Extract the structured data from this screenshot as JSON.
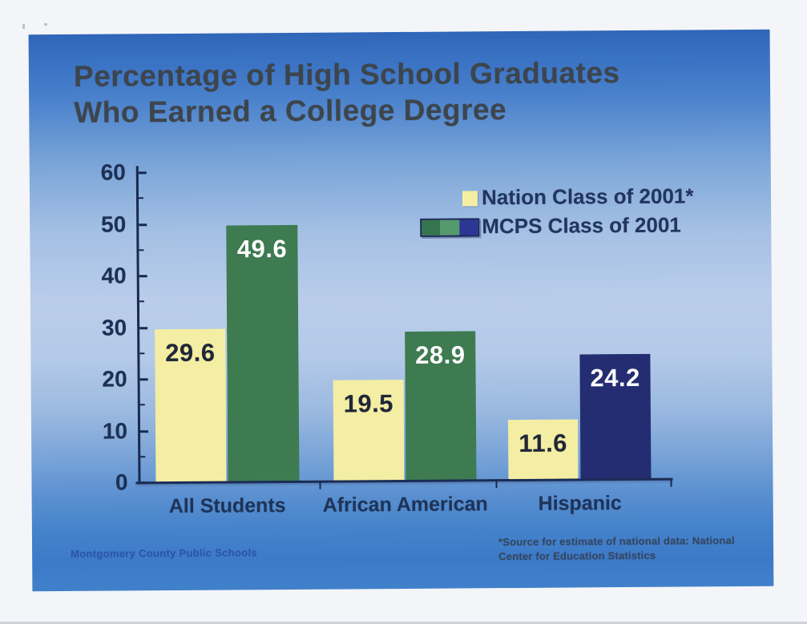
{
  "header": {
    "title_line1": "Percentage of High School Graduates",
    "title_line2": "Who Earned a College Degree"
  },
  "chart_data": {
    "type": "bar",
    "title": "Percentage of High School Graduates Who Earned a College Degree",
    "categories": [
      "All Students",
      "African American",
      "Hispanic"
    ],
    "series": [
      {
        "name": "Nation Class of 2001*",
        "values": [
          29.6,
          19.5,
          11.6
        ],
        "color": "#f4eea4",
        "label_color": "#1f2738"
      },
      {
        "name": "MCPS Class of 2001",
        "values": [
          49.6,
          28.9,
          24.2
        ],
        "colors": [
          "#3e7b51",
          "#3e7b51",
          "#252d72"
        ],
        "label_color": "#ffffff"
      }
    ],
    "ylim": [
      0,
      60
    ],
    "yticks": [
      0,
      10,
      20,
      30,
      40,
      50,
      60
    ],
    "minor_tick_step": 5,
    "grid": false,
    "legend_position": "upper-right",
    "axis_color": "#19294f",
    "background": "blue-gradient"
  },
  "legend": {
    "nation_swatch_color": "#f4eea4",
    "mcps_swatch_colors": [
      "#35744e",
      "#549a6c",
      "#2c3693"
    ]
  },
  "footer": {
    "credit": "Montgomery County Public Schools",
    "note_line1": "*Source for estimate of national data:  National",
    "note_line2": "Center for Education Statistics"
  }
}
